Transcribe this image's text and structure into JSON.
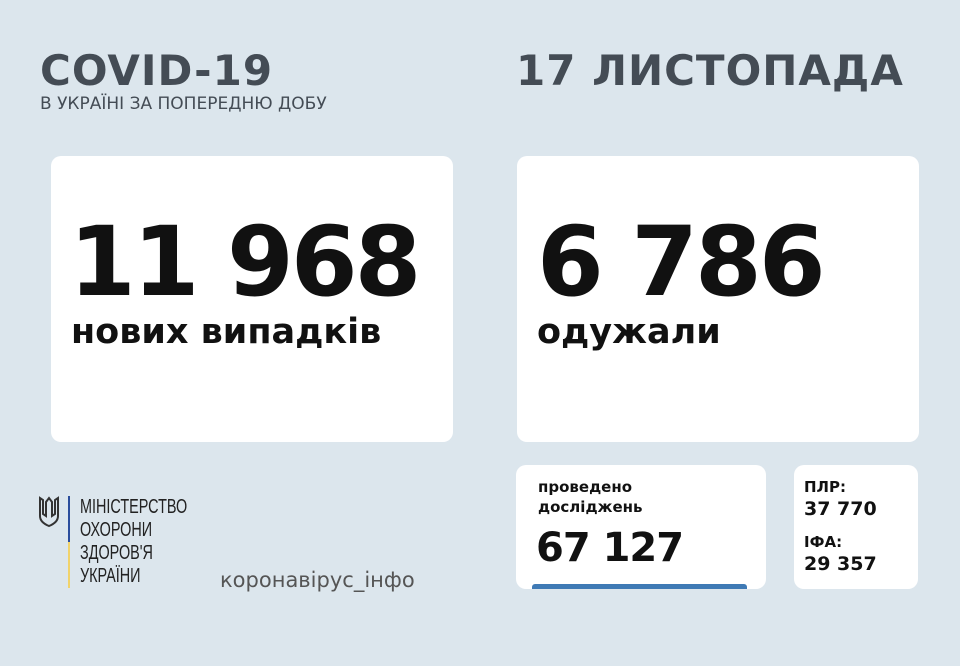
{
  "header": {
    "title": "COVID-19",
    "subtitle": "В УКРАЇНІ ЗА ПОПЕРЕДНЮ ДОБУ",
    "date": "17 ЛИСТОПАДА"
  },
  "new_cases": {
    "value": "11 968",
    "label": "нових випадків"
  },
  "recovered": {
    "value": "6 786",
    "label": "одужали"
  },
  "tests": {
    "label_line1": "проведено",
    "label_line2": "досліджень",
    "value": "67 127"
  },
  "test_types": {
    "pcr_label": "ПЛР:",
    "pcr_value": "37 770",
    "ifa_label": "ІФА:",
    "ifa_value": "29 357"
  },
  "ministry": {
    "lines": [
      "МІНІСТЕРСТВО",
      "ОХОРОНИ",
      "ЗДОРОВ'Я",
      "УКРАЇНИ"
    ],
    "emblem": "trident-icon"
  },
  "hashtag": "коронавірус_інфо",
  "colors": {
    "background": "#dce6ed",
    "accent_blue": "#3f7ab5",
    "flag_blue": "#2a4d9c",
    "flag_yellow": "#f1d36b"
  }
}
